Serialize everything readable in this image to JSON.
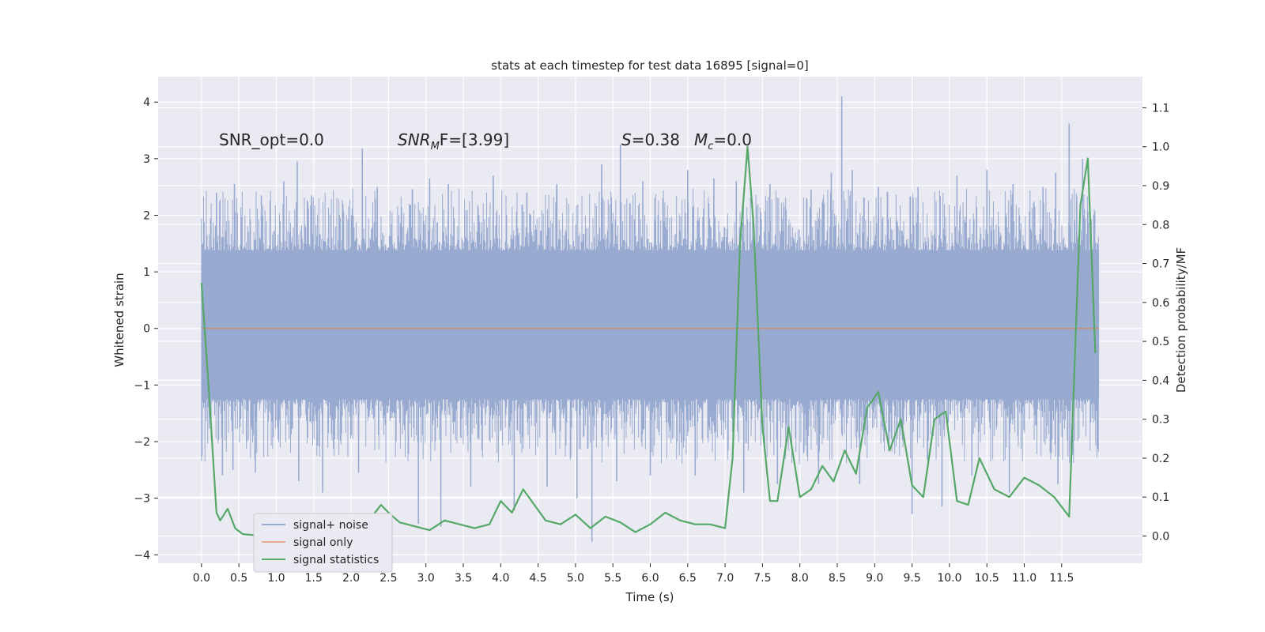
{
  "chart_data": {
    "type": "line",
    "title": "stats at each timestep for test data 16895 [signal=0]",
    "xlabel": "Time (s)",
    "ylabel_left": "Whitened strain",
    "ylabel_right": "Detection probability/MF",
    "xlim": [
      -0.58,
      12.58
    ],
    "ylim_left": [
      -4.15,
      4.45
    ],
    "ylim_right": [
      -0.07,
      1.18
    ],
    "x_ticks": [
      0,
      0.5,
      1,
      1.5,
      2,
      2.5,
      3,
      3.5,
      4,
      4.5,
      5,
      5.5,
      6,
      6.5,
      7,
      7.5,
      8,
      8.5,
      9,
      9.5,
      10,
      10.5,
      11,
      11.5
    ],
    "x_tick_labels": [
      "0.0",
      "0.5",
      "1.0",
      "1.5",
      "2.0",
      "2.5",
      "3.0",
      "3.5",
      "4.0",
      "4.5",
      "5.0",
      "5.5",
      "6.0",
      "6.5",
      "7.0",
      "7.5",
      "8.0",
      "8.5",
      "9.0",
      "9.5",
      "10.0",
      "10.5",
      "11.0",
      "11.5"
    ],
    "y_left_ticks": [
      -4,
      -3,
      -2,
      -1,
      0,
      1,
      2,
      3,
      4
    ],
    "y_left_tick_labels": [
      "−4",
      "−3",
      "−2",
      "−1",
      "0",
      "1",
      "2",
      "3",
      "4"
    ],
    "y_right_ticks": [
      0.0,
      0.1,
      0.2,
      0.3,
      0.4,
      0.5,
      0.6,
      0.7,
      0.8,
      0.9,
      1.0,
      1.1
    ],
    "y_right_tick_labels": [
      "0.0",
      "0.1",
      "0.2",
      "0.3",
      "0.4",
      "0.5",
      "0.6",
      "0.7",
      "0.8",
      "0.9",
      "1.0",
      "1.1"
    ],
    "noise_band": {
      "t_start": 0.0,
      "t_end": 12.0,
      "core_low": -1.25,
      "core_high": 1.38,
      "spike_high": [
        [
          0.2,
          2.4
        ],
        [
          0.44,
          2.55
        ],
        [
          0.8,
          2.35
        ],
        [
          1.1,
          2.6
        ],
        [
          1.28,
          2.95
        ],
        [
          1.47,
          2.35
        ],
        [
          2.15,
          3.18
        ],
        [
          2.35,
          2.5
        ],
        [
          2.82,
          2.45
        ],
        [
          3.05,
          2.65
        ],
        [
          3.3,
          2.55
        ],
        [
          3.9,
          2.7
        ],
        [
          4.35,
          2.4
        ],
        [
          4.75,
          2.55
        ],
        [
          5.35,
          2.9
        ],
        [
          5.6,
          3.25
        ],
        [
          5.9,
          2.6
        ],
        [
          6.5,
          2.8
        ],
        [
          6.85,
          2.65
        ],
        [
          7.15,
          2.6
        ],
        [
          7.6,
          2.55
        ],
        [
          8.15,
          2.45
        ],
        [
          8.42,
          2.75
        ],
        [
          8.56,
          4.1
        ],
        [
          8.7,
          2.8
        ],
        [
          9.05,
          2.5
        ],
        [
          9.58,
          2.5
        ],
        [
          10.1,
          2.7
        ],
        [
          10.5,
          2.8
        ],
        [
          10.85,
          2.55
        ],
        [
          11.25,
          2.5
        ],
        [
          11.42,
          2.75
        ],
        [
          11.6,
          3.62
        ],
        [
          11.78,
          3.0
        ]
      ],
      "spike_low": [
        [
          0.28,
          -2.6
        ],
        [
          0.42,
          -2.5
        ],
        [
          0.72,
          -2.55
        ],
        [
          1.3,
          -2.7
        ],
        [
          1.62,
          -2.9
        ],
        [
          2.1,
          -2.55
        ],
        [
          2.9,
          -3.45
        ],
        [
          3.2,
          -3.5
        ],
        [
          3.6,
          -2.8
        ],
        [
          4.18,
          -3.22
        ],
        [
          4.62,
          -2.8
        ],
        [
          5.02,
          -3.0
        ],
        [
          5.22,
          -3.77
        ],
        [
          5.55,
          -2.7
        ],
        [
          6.0,
          -2.6
        ],
        [
          6.6,
          -2.6
        ],
        [
          7.25,
          -2.9
        ],
        [
          7.7,
          -2.75
        ],
        [
          8.25,
          -2.75
        ],
        [
          8.8,
          -2.75
        ],
        [
          9.5,
          -3.28
        ],
        [
          9.9,
          -3.15
        ],
        [
          10.3,
          -2.6
        ],
        [
          10.8,
          -2.9
        ],
        [
          11.45,
          -2.75
        ]
      ]
    },
    "series": [
      {
        "name": "signal+ noise",
        "color": "#98aad0",
        "axis": "left"
      },
      {
        "name": "signal only",
        "color": "#dd8452",
        "axis": "left",
        "x": [
          0,
          12
        ],
        "y": [
          0,
          0
        ]
      },
      {
        "name": "signal statistics",
        "color": "#55a868",
        "axis": "right",
        "x": [
          0.0,
          0.1,
          0.2,
          0.25,
          0.35,
          0.45,
          0.55,
          0.65,
          0.8,
          1.0,
          1.2,
          1.4,
          1.6,
          1.8,
          2.0,
          2.2,
          2.4,
          2.5,
          2.65,
          2.85,
          3.05,
          3.25,
          3.45,
          3.65,
          3.85,
          4.0,
          4.15,
          4.3,
          4.45,
          4.6,
          4.8,
          5.0,
          5.2,
          5.4,
          5.6,
          5.8,
          6.0,
          6.2,
          6.4,
          6.6,
          6.8,
          7.0,
          7.1,
          7.2,
          7.3,
          7.38,
          7.5,
          7.6,
          7.7,
          7.85,
          8.0,
          8.15,
          8.3,
          8.45,
          8.6,
          8.75,
          8.9,
          9.05,
          9.2,
          9.35,
          9.5,
          9.65,
          9.8,
          9.95,
          10.1,
          10.25,
          10.4,
          10.6,
          10.8,
          11.0,
          11.2,
          11.4,
          11.6,
          11.75,
          11.85,
          11.95
        ],
        "y": [
          0.65,
          0.37,
          0.06,
          0.04,
          0.07,
          0.02,
          0.005,
          0.003,
          0.0,
          -0.002,
          0.005,
          0.0,
          0.01,
          0.025,
          0.015,
          0.03,
          0.08,
          0.06,
          0.035,
          0.025,
          0.015,
          0.04,
          0.03,
          0.02,
          0.03,
          0.09,
          0.06,
          0.12,
          0.08,
          0.04,
          0.03,
          0.055,
          0.02,
          0.05,
          0.035,
          0.01,
          0.03,
          0.06,
          0.04,
          0.03,
          0.03,
          0.02,
          0.2,
          0.75,
          1.0,
          0.8,
          0.28,
          0.09,
          0.09,
          0.28,
          0.1,
          0.12,
          0.18,
          0.14,
          0.22,
          0.16,
          0.33,
          0.37,
          0.22,
          0.3,
          0.13,
          0.1,
          0.3,
          0.32,
          0.09,
          0.08,
          0.2,
          0.12,
          0.1,
          0.15,
          0.13,
          0.1,
          0.05,
          0.85,
          0.97,
          0.47
        ]
      }
    ],
    "annotations": [
      {
        "text": "SNR_opt=0.0",
        "x": 0.2,
        "y": 3.3
      },
      {
        "text": "SNR_MF=[3.99]",
        "x": 2.6,
        "y": 3.3
      },
      {
        "text": "S=0.38   M_c=0.0",
        "x": 5.6,
        "y": 3.3
      }
    ],
    "annotation_parts": {
      "snr_opt": "SNR_opt=0.0",
      "snr_mf_main": "SNR",
      "snr_mf_sub": "M",
      "snr_mf_rest": "F=[3.99]",
      "s_var": "S",
      "s_val": "=0.38",
      "mc_var": "M",
      "mc_sub": "c",
      "mc_val": "=0.0"
    },
    "legend": {
      "position": "lower-left",
      "entries": [
        "signal+ noise",
        "signal only",
        "signal statistics"
      ]
    }
  }
}
